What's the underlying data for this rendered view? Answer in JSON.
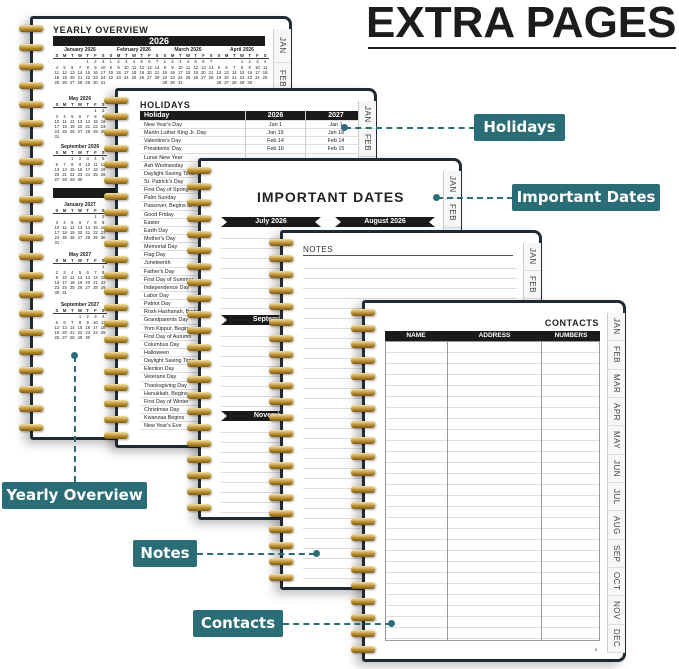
{
  "title": "EXTRA PAGES",
  "colors": {
    "callout": "#2b6d77",
    "cover": "#1f2b33",
    "header_bar": "#1b1b1b",
    "ring": "#c99a3a"
  },
  "tab_months": [
    "JAN",
    "FEB",
    "MAR",
    "APR",
    "MAY",
    "JUN",
    "JUL",
    "AUG",
    "SEP",
    "OCT",
    "NOV",
    "DEC"
  ],
  "yearly": {
    "heading": "YEARLY OVERVIEW",
    "year": "2026",
    "weekdays": [
      "S",
      "M",
      "T",
      "W",
      "T",
      "F",
      "S"
    ],
    "months": [
      {
        "name": "January 2026",
        "first_weekday": 4,
        "days": 31
      },
      {
        "name": "February 2026",
        "first_weekday": 0,
        "days": 28
      },
      {
        "name": "March 2026",
        "first_weekday": 0,
        "days": 31
      },
      {
        "name": "April 2026",
        "first_weekday": 3,
        "days": 30
      },
      {
        "name": "May 2026",
        "first_weekday": 5,
        "days": 31
      },
      {
        "name": "September 2026",
        "first_weekday": 2,
        "days": 30
      },
      {
        "name": "January 2027",
        "first_weekday": 5,
        "days": 31
      },
      {
        "name": "May 2027",
        "first_weekday": 6,
        "days": 31
      },
      {
        "name": "September 2027",
        "first_weekday": 3,
        "days": 30
      }
    ]
  },
  "holidays": {
    "heading": "HOLIDAYS",
    "columns": [
      "Holiday",
      "2026",
      "2027"
    ],
    "rows": [
      [
        "New Year's Day",
        "Jan 1",
        "Jan 1"
      ],
      [
        "Martin Luther King Jr. Day",
        "Jan 19",
        "Jan 18"
      ],
      [
        "Valentine's Day",
        "Feb 14",
        "Feb 14"
      ],
      [
        "Presidents' Day",
        "Feb 16",
        "Feb 15"
      ],
      [
        "Lunar New Year",
        "",
        ""
      ],
      [
        "Ash Wednesday",
        "",
        ""
      ],
      [
        "Daylight Saving Time",
        "",
        ""
      ],
      [
        "St. Patrick's Day",
        "",
        ""
      ],
      [
        "First Day of Spring",
        "",
        ""
      ],
      [
        "Palm Sunday",
        "",
        ""
      ],
      [
        "Passover, Begins at",
        "",
        ""
      ],
      [
        "Good Friday",
        "",
        ""
      ],
      [
        "Easter",
        "",
        ""
      ],
      [
        "Earth Day",
        "",
        ""
      ],
      [
        "Mother's Day",
        "",
        ""
      ],
      [
        "Memorial Day",
        "",
        ""
      ],
      [
        "Flag Day",
        "",
        ""
      ],
      [
        "Juneteenth",
        "",
        ""
      ],
      [
        "Father's Day",
        "",
        ""
      ],
      [
        "First Day of Summer",
        "",
        ""
      ],
      [
        "Independence Day",
        "",
        ""
      ],
      [
        "Labor Day",
        "",
        ""
      ],
      [
        "Patriot Day",
        "",
        ""
      ],
      [
        "Rosh Hashanah, Begins",
        "",
        ""
      ],
      [
        "Grandparents Day",
        "",
        ""
      ],
      [
        "Yom Kippur, Begins",
        "",
        ""
      ],
      [
        "First Day of Autumn",
        "",
        ""
      ],
      [
        "Columbus Day",
        "",
        ""
      ],
      [
        "Halloween",
        "",
        ""
      ],
      [
        "Daylight Saving Time",
        "",
        ""
      ],
      [
        "Election Day",
        "",
        ""
      ],
      [
        "Veterans Day",
        "",
        ""
      ],
      [
        "Thanksgiving Day",
        "",
        ""
      ],
      [
        "Hanukkah, Begins",
        "",
        ""
      ],
      [
        "First Day of Winter",
        "",
        ""
      ],
      [
        "Christmas Day",
        "",
        ""
      ],
      [
        "Kwanzaa Begins",
        "",
        ""
      ],
      [
        "New Year's Eve",
        "",
        ""
      ]
    ]
  },
  "important": {
    "heading": "IMPORTANT DATES",
    "months": [
      "July 2026",
      "August 2026",
      "September",
      "November"
    ]
  },
  "notes": {
    "heading": "NOTES"
  },
  "contacts": {
    "heading": "CONTACTS",
    "columns": [
      "NAME",
      "ADDRESS",
      "NUMBERS"
    ],
    "page_number": "5"
  },
  "callouts": {
    "holidays": "Holidays",
    "important": "Important Dates",
    "yearly": "Yearly Overview",
    "notes": "Notes",
    "contacts": "Contacts"
  }
}
